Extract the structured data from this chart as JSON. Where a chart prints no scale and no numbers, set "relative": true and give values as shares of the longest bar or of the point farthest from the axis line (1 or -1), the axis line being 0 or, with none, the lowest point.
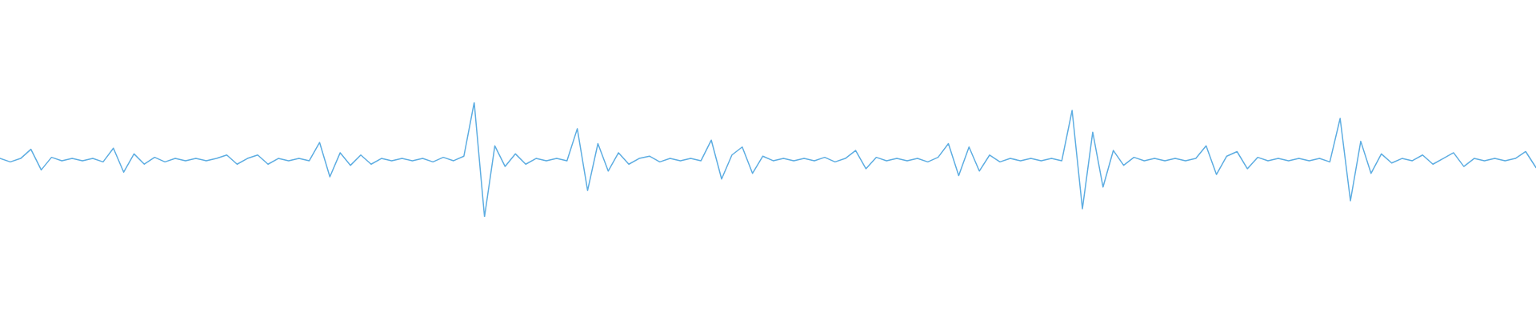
{
  "chart_data": {
    "type": "line",
    "relative": true,
    "color": "#5dade2",
    "categories": [
      null,
      null,
      null,
      null,
      null,
      null,
      null,
      null,
      null,
      null,
      null,
      null,
      null,
      null,
      null,
      null,
      null,
      null,
      null,
      null,
      null,
      null,
      null,
      null,
      null,
      null,
      null,
      null,
      null,
      null,
      null,
      null,
      null,
      null,
      null,
      null,
      null,
      null,
      null,
      null,
      null,
      null,
      null,
      null,
      null,
      null,
      null,
      null,
      null,
      null,
      null,
      null,
      null,
      null,
      null,
      null,
      null,
      null,
      null,
      null,
      null,
      null,
      null,
      null,
      null,
      null,
      null,
      null,
      null,
      null,
      null,
      null,
      null,
      null,
      null,
      null,
      null,
      null,
      null,
      null,
      null,
      null,
      null,
      null,
      null,
      null,
      null,
      null,
      null,
      null,
      null,
      null,
      null,
      null,
      null,
      null,
      null,
      null,
      null,
      null,
      null,
      null,
      null,
      null,
      null,
      null,
      null,
      null,
      null,
      null,
      null,
      null,
      null,
      null,
      null,
      null,
      null,
      null,
      null,
      null,
      null,
      null,
      null,
      null,
      null,
      null,
      null,
      null,
      null,
      null,
      null,
      null,
      null,
      null,
      null,
      null,
      null,
      null,
      null,
      null,
      null,
      null,
      null,
      null,
      null,
      null,
      null,
      null,
      null,
      null
    ],
    "values": [
      0.51,
      0.48,
      0.51,
      0.59,
      0.41,
      0.52,
      0.49,
      0.51,
      0.49,
      0.51,
      0.48,
      0.6,
      0.39,
      0.55,
      0.46,
      0.52,
      0.48,
      0.51,
      0.49,
      0.51,
      0.49,
      0.51,
      0.54,
      0.46,
      0.51,
      0.54,
      0.46,
      0.51,
      0.49,
      0.51,
      0.49,
      0.65,
      0.35,
      0.56,
      0.45,
      0.54,
      0.46,
      0.51,
      0.49,
      0.51,
      0.49,
      0.51,
      0.48,
      0.52,
      0.49,
      0.53,
      1.0,
      0.0,
      0.62,
      0.44,
      0.55,
      0.46,
      0.51,
      0.49,
      0.51,
      0.49,
      0.77,
      0.23,
      0.64,
      0.4,
      0.56,
      0.46,
      0.51,
      0.53,
      0.48,
      0.51,
      0.49,
      0.51,
      0.49,
      0.67,
      0.33,
      0.54,
      0.61,
      0.38,
      0.53,
      0.49,
      0.51,
      0.49,
      0.51,
      0.49,
      0.52,
      0.48,
      0.51,
      0.58,
      0.42,
      0.52,
      0.49,
      0.51,
      0.49,
      0.51,
      0.48,
      0.52,
      0.64,
      0.36,
      0.61,
      0.4,
      0.54,
      0.48,
      0.51,
      0.49,
      0.51,
      0.49,
      0.51,
      0.49,
      0.93,
      0.07,
      0.74,
      0.26,
      0.58,
      0.45,
      0.52,
      0.49,
      0.51,
      0.49,
      0.51,
      0.49,
      0.51,
      0.62,
      0.37,
      0.53,
      0.57,
      0.42,
      0.52,
      0.49,
      0.51,
      0.49,
      0.51,
      0.49,
      0.51,
      0.48,
      0.86,
      0.14,
      0.66,
      0.38,
      0.55,
      0.47,
      0.51,
      0.49,
      0.54,
      0.46,
      0.51,
      0.56,
      0.44,
      0.51,
      0.49,
      0.51,
      0.49,
      0.51,
      0.57,
      0.43
    ]
  }
}
